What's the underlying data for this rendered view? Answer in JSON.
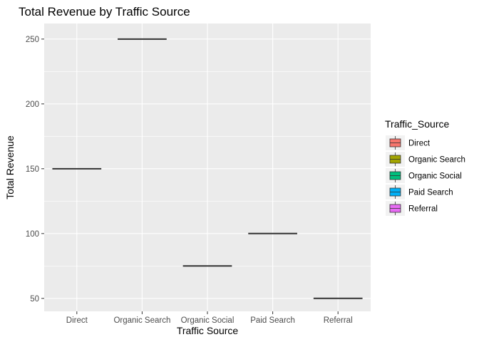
{
  "chart_data": {
    "type": "box",
    "title": "Total Revenue by Traffic Source",
    "xlabel": "Traffic Source",
    "ylabel": "Total Revenue",
    "categories": [
      "Direct",
      "Organic Search",
      "Organic Social",
      "Paid Search",
      "Referral"
    ],
    "values": [
      150,
      250,
      75,
      100,
      50
    ],
    "ylim": [
      40,
      262
    ],
    "yticks": [
      50,
      100,
      150,
      200,
      250
    ],
    "grid": true,
    "legend": {
      "title": "Traffic_Source",
      "placement": "right",
      "entries": [
        {
          "name": "Direct",
          "color": "#F8766D"
        },
        {
          "name": "Organic Search",
          "color": "#A3A500"
        },
        {
          "name": "Organic Social",
          "color": "#00BF7D"
        },
        {
          "name": "Paid Search",
          "color": "#00B0F6"
        },
        {
          "name": "Referral",
          "color": "#E76BF3"
        }
      ]
    },
    "panel_color": "#EBEBEB",
    "grid_color": "#FFFFFF"
  }
}
